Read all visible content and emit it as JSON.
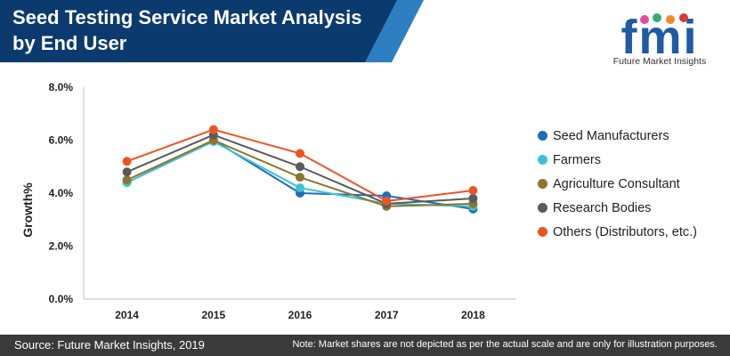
{
  "header": {
    "title": "Seed Testing Service Market Analysis by End User",
    "banner_color": "#0b3a6e",
    "accent_color": "#2d7fc1"
  },
  "logo": {
    "letters": "fmi",
    "tagline": "Future Market Insights",
    "color": "#1f5aa6"
  },
  "chart_data": {
    "type": "line",
    "title": "Seed Testing Service Market Analysis by End User",
    "xlabel": "",
    "ylabel": "Growth%",
    "x": [
      "2014",
      "2015",
      "2016",
      "2017",
      "2018"
    ],
    "ylim": [
      0,
      8
    ],
    "yticks": [
      0,
      2,
      4,
      6,
      8
    ],
    "ytick_labels": [
      "0.0%",
      "2.0%",
      "4.0%",
      "6.0%",
      "8.0%"
    ],
    "grid": false,
    "legend": "right",
    "series": [
      {
        "name": "Seed Manufacturers",
        "color": "#1f6fb8",
        "values": [
          4.4,
          6.0,
          4.0,
          3.9,
          3.4
        ]
      },
      {
        "name": "Farmers",
        "color": "#3fc2d0",
        "values": [
          4.4,
          5.95,
          4.2,
          3.6,
          3.5
        ]
      },
      {
        "name": "Agriculture Consultant",
        "color": "#8d7628",
        "values": [
          4.5,
          6.0,
          4.6,
          3.5,
          3.6
        ]
      },
      {
        "name": "Research Bodies",
        "color": "#5a5a5a",
        "values": [
          4.8,
          6.2,
          5.0,
          3.6,
          3.8
        ]
      },
      {
        "name": "Others (Distributors, etc.)",
        "color": "#ee5323",
        "values": [
          5.2,
          6.4,
          5.5,
          3.7,
          4.1
        ]
      }
    ]
  },
  "footer": {
    "source": "Source: Future Market Insights, 2019",
    "note": "Note: Market shares are not depicted as per the actual scale and are only for illustration purposes."
  }
}
